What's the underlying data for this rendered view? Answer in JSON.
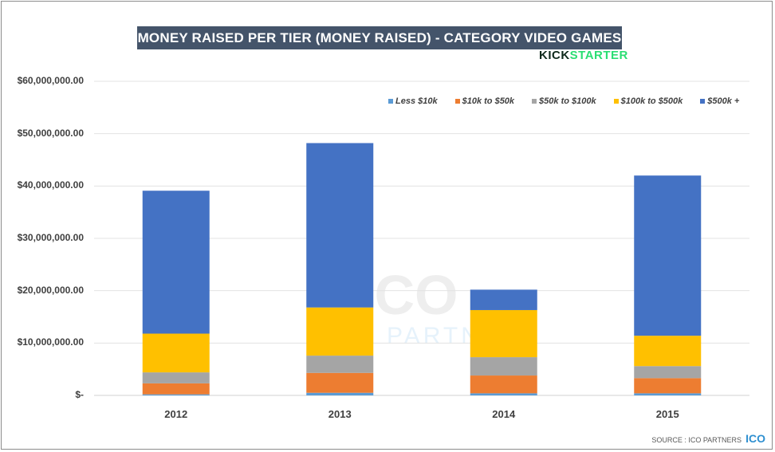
{
  "chart_data": {
    "type": "bar",
    "stacked": true,
    "title": "MONEY RAISED PER TIER (MONEY RAISED) - CATEGORY VIDEO GAMES",
    "categories": [
      "2012",
      "2013",
      "2014",
      "2015"
    ],
    "series": [
      {
        "name": "Less $10k",
        "color": "#5B9BD5",
        "values": [
          0.2,
          0.5,
          0.4,
          0.4
        ]
      },
      {
        "name": "$10k to $50k",
        "color": "#ED7D31",
        "values": [
          2.1,
          3.8,
          3.4,
          2.9
        ]
      },
      {
        "name": "$50k to $100k",
        "color": "#A5A5A5",
        "values": [
          2.1,
          3.3,
          3.5,
          2.3
        ]
      },
      {
        "name": "$100k to $500k",
        "color": "#FFC000",
        "values": [
          7.4,
          9.2,
          9.0,
          5.8
        ]
      },
      {
        "name": "$500k +",
        "color": "#4472C4",
        "values": [
          27.3,
          31.4,
          3.9,
          30.6
        ]
      }
    ],
    "value_unit": "USD millions",
    "ylim": [
      0,
      60
    ],
    "yticks": [
      0,
      10,
      20,
      30,
      40,
      50,
      60
    ],
    "ytick_labels": [
      "$-",
      "$10,000,000.00",
      "$20,000,000.00",
      "$30,000,000.00",
      "$40,000,000.00",
      "$50,000,000.00",
      "$60,000,000.00"
    ],
    "grid": true,
    "legend": "top-right"
  },
  "logo_text": "KICKSTARTER",
  "watermark": "ICO PARTNERS",
  "source": "SOURCE : ICO PARTNERS",
  "source_logo": "ICO"
}
